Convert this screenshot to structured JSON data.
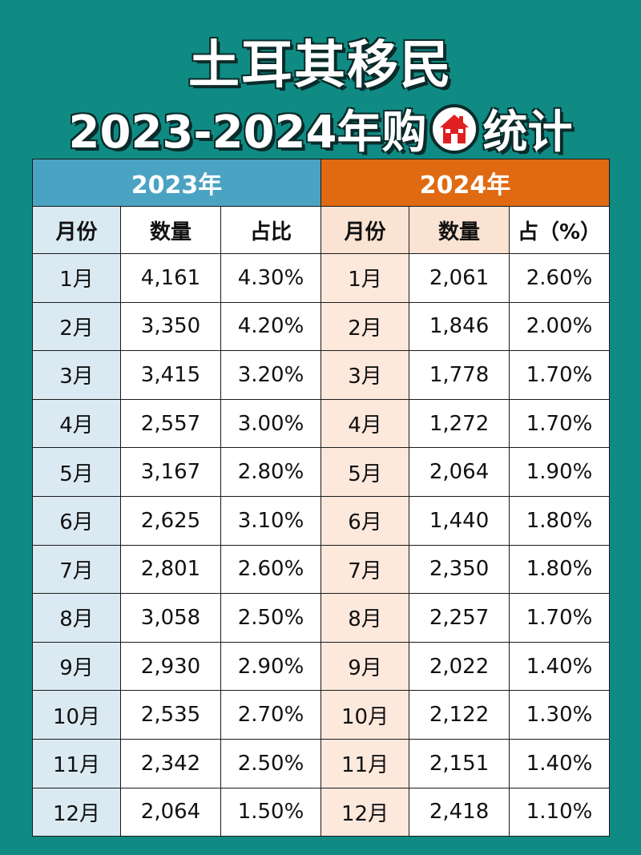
{
  "header": {
    "title_line1": "土耳其移民",
    "title_line2_prefix": "2023-2024年购",
    "title_line2_suffix": "统计"
  },
  "colors": {
    "background": "#0f8b84",
    "year2023_header": "#4ba3c3",
    "year2024_header": "#e06a12",
    "month2023_bg": "#dbeaf2",
    "month2024_bg": "#fde8dc"
  },
  "table": {
    "years": [
      "2023年",
      "2024年"
    ],
    "columns_2023": [
      "月份",
      "数量",
      "占比"
    ],
    "columns_2024": [
      "月份",
      "数量",
      "占（%）"
    ]
  },
  "chart_data": {
    "type": "table",
    "rows": [
      {
        "m23": "1月",
        "q23": "4,161",
        "p23": "4.30%",
        "m24": "1月",
        "q24": "2,061",
        "p24": "2.60%"
      },
      {
        "m23": "2月",
        "q23": "3,350",
        "p23": "4.20%",
        "m24": "2月",
        "q24": "1,846",
        "p24": "2.00%"
      },
      {
        "m23": "3月",
        "q23": "3,415",
        "p23": "3.20%",
        "m24": "3月",
        "q24": "1,778",
        "p24": "1.70%"
      },
      {
        "m23": "4月",
        "q23": "2,557",
        "p23": "3.00%",
        "m24": "4月",
        "q24": "1,272",
        "p24": "1.70%"
      },
      {
        "m23": "5月",
        "q23": "3,167",
        "p23": "2.80%",
        "m24": "5月",
        "q24": "2,064",
        "p24": "1.90%"
      },
      {
        "m23": "6月",
        "q23": "2,625",
        "p23": "3.10%",
        "m24": "6月",
        "q24": "1,440",
        "p24": "1.80%"
      },
      {
        "m23": "7月",
        "q23": "2,801",
        "p23": "2.60%",
        "m24": "7月",
        "q24": "2,350",
        "p24": "1.80%"
      },
      {
        "m23": "8月",
        "q23": "3,058",
        "p23": "2.50%",
        "m24": "8月",
        "q24": "2,257",
        "p24": "1.70%"
      },
      {
        "m23": "9月",
        "q23": "2,930",
        "p23": "2.90%",
        "m24": "9月",
        "q24": "2,022",
        "p24": "1.40%"
      },
      {
        "m23": "10月",
        "q23": "2,535",
        "p23": "2.70%",
        "m24": "10月",
        "q24": "2,122",
        "p24": "1.30%"
      },
      {
        "m23": "11月",
        "q23": "2,342",
        "p23": "2.50%",
        "m24": "11月",
        "q24": "2,151",
        "p24": "1.40%"
      },
      {
        "m23": "12月",
        "q23": "2,064",
        "p23": "1.50%",
        "m24": "12月",
        "q24": "2,418",
        "p24": "1.10%"
      }
    ]
  }
}
